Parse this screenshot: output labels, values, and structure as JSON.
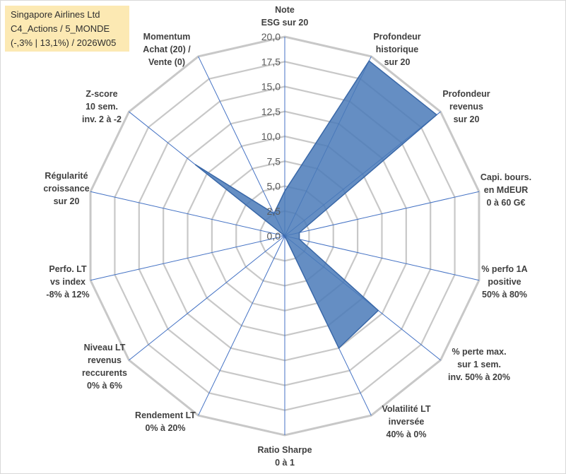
{
  "header": {
    "line1": "Singapore Airlines Ltd",
    "line2": "C4_Actions / 5_MONDE",
    "line3": "(-,3% | 13,1%) / 2026W05"
  },
  "colors": {
    "fill": "#4a7ab8",
    "stroke": "#3a68a8",
    "grid": "#c8c8c8",
    "spoke": "#4472c4"
  },
  "chart_data": {
    "type": "radar",
    "rmin": 0,
    "rmax": 20,
    "grid_steps": 8,
    "tick_labels": [
      "0,0",
      "2,5",
      "5,0",
      "7,5",
      "10,0",
      "12,5",
      "15,0",
      "17,5",
      "20,0"
    ],
    "axes": [
      {
        "label": [
          "Note",
          "ESG sur 20"
        ],
        "value": 4.5
      },
      {
        "label": [
          "Profondeur",
          "historique",
          "sur 20"
        ],
        "value": 19.5
      },
      {
        "label": [
          "Profondeur",
          "revenus",
          "sur 20"
        ],
        "value": 19.5
      },
      {
        "label": [
          "Capi. bours.",
          "en MdEUR",
          "0 à 60 G€"
        ],
        "value": 1.5
      },
      {
        "label": [
          "% perfo 1A",
          "positive",
          "50% à 80%"
        ],
        "value": 1.5
      },
      {
        "label": [
          "% perte max.",
          "sur 1 sem.",
          "inv. 50% à 20%"
        ],
        "value": 12.0
      },
      {
        "label": [
          "Volatilité LT",
          "inversée",
          "40% à 0%"
        ],
        "value": 12.5
      },
      {
        "label": [
          "Ratio Sharpe",
          "0 à 1"
        ],
        "value": 0
      },
      {
        "label": [
          "Rendement LT",
          "0% à 20%"
        ],
        "value": 0
      },
      {
        "label": [
          "Niveau LT",
          "revenus",
          "reccurents",
          "0% à 6%"
        ],
        "value": 0
      },
      {
        "label": [
          "Perfo. LT",
          "vs index",
          "-8% à 12%"
        ],
        "value": 0
      },
      {
        "label": [
          "Régularité",
          "croissance",
          "sur 20"
        ],
        "value": 0
      },
      {
        "label": [
          "Z-score",
          "10 sem.",
          "inv. 2 à -2"
        ],
        "value": 11.5
      },
      {
        "label": [
          "Momentum",
          "Achat (20) /",
          "Vente (0)"
        ],
        "value": 2.5
      }
    ]
  }
}
